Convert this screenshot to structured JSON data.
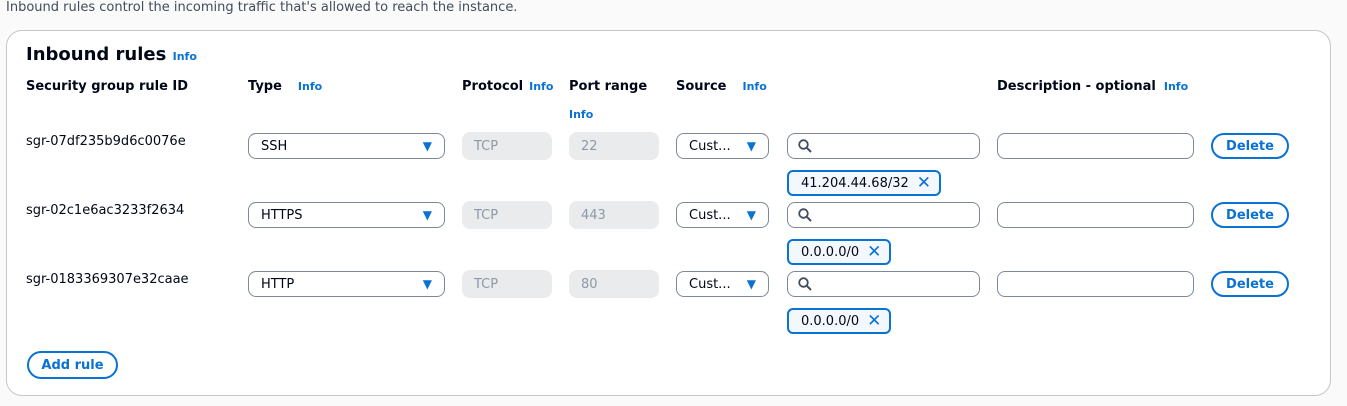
{
  "intro": "Inbound rules control the incoming traffic that's allowed to reach the instance.",
  "panel": {
    "title": "Inbound rules",
    "info": "Info"
  },
  "headers": {
    "rule_id": "Security group rule ID",
    "type": "Type",
    "protocol": "Protocol",
    "port_range": "Port range",
    "source": "Source",
    "description": "Description - optional",
    "info": "Info"
  },
  "rules": [
    {
      "id": "sgr-07df235b9d6c0076e",
      "type": "SSH",
      "protocol": "TCP",
      "port": "22",
      "source": "Cust...",
      "search": "",
      "cidr": "41.204.44.68/32",
      "description": "",
      "delete": "Delete"
    },
    {
      "id": "sgr-02c1e6ac3233f2634",
      "type": "HTTPS",
      "protocol": "TCP",
      "port": "443",
      "source": "Cust...",
      "search": "",
      "cidr": "0.0.0.0/0",
      "description": "",
      "delete": "Delete"
    },
    {
      "id": "sgr-0183369307e32caae",
      "type": "HTTP",
      "protocol": "TCP",
      "port": "80",
      "source": "Cust...",
      "search": "",
      "cidr": "0.0.0.0/0",
      "description": "",
      "delete": "Delete"
    }
  ],
  "add_rule": "Add rule",
  "colors": {
    "accent": "#0972d3",
    "disabled_bg": "#e9ebed"
  }
}
